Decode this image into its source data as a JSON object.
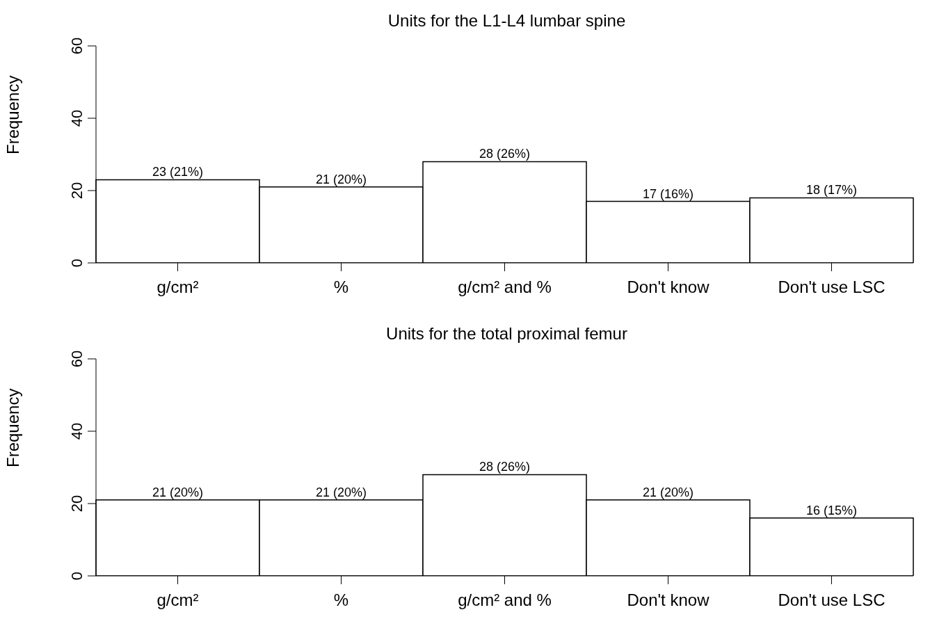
{
  "chart_data": [
    {
      "type": "bar",
      "title": "Units for the L1-L4 lumbar spine",
      "ylabel": "Frequency",
      "categories": [
        "g/cm²",
        "%",
        "g/cm² and %",
        "Don't know",
        "Don't use LSC"
      ],
      "values": [
        23,
        21,
        28,
        17,
        18
      ],
      "value_labels": [
        "23 (21%)",
        "21 (20%)",
        "28 (26%)",
        "17 (16%)",
        "18 (17%)"
      ],
      "color": "#ffffff",
      "ylim": [
        0,
        60
      ],
      "yticks": [
        0,
        20,
        40,
        60
      ],
      "grid": false
    },
    {
      "type": "bar",
      "title": "Units for the total proximal femur",
      "ylabel": "Frequency",
      "categories": [
        "g/cm²",
        "%",
        "g/cm² and %",
        "Don't know",
        "Don't use LSC"
      ],
      "values": [
        21,
        21,
        28,
        21,
        16
      ],
      "value_labels": [
        "21 (20%)",
        "21 (20%)",
        "28 (26%)",
        "21 (20%)",
        "16 (15%)"
      ],
      "color": "#ffffff",
      "ylim": [
        0,
        60
      ],
      "yticks": [
        0,
        20,
        40,
        60
      ],
      "grid": false
    }
  ]
}
